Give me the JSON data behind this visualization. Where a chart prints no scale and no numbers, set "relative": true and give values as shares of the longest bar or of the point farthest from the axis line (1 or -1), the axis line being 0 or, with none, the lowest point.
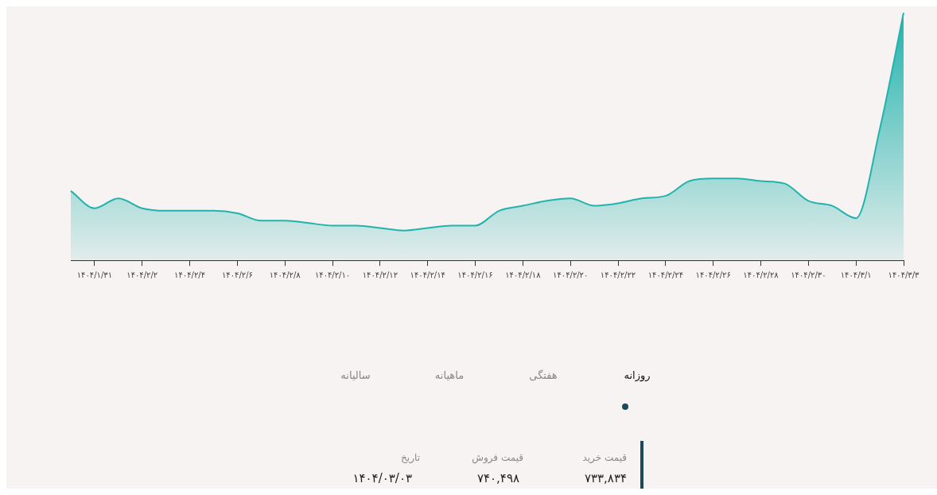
{
  "chart_data": {
    "type": "area",
    "relative": true,
    "color": "#22b3ad",
    "grid": false,
    "legend": false,
    "tick_labels": "x",
    "categories": [
      null,
      "۱۴۰۴/۱/۳۱",
      null,
      "۱۴۰۴/۲/۲",
      null,
      "۱۴۰۴/۲/۴",
      null,
      "۱۴۰۴/۲/۶",
      null,
      "۱۴۰۴/۲/۸",
      null,
      "۱۴۰۴/۲/۱۰",
      null,
      "۱۴۰۴/۲/۱۲",
      null,
      "۱۴۰۴/۲/۱۴",
      null,
      "۱۴۰۴/۲/۱۶",
      null,
      "۱۴۰۴/۲/۱۸",
      null,
      "۱۴۰۴/۲/۲۰",
      null,
      "۱۴۰۴/۲/۲۲",
      null,
      "۱۴۰۴/۲/۲۴",
      null,
      "۱۴۰۴/۲/۲۶",
      null,
      "۱۴۰۴/۲/۲۸",
      null,
      "۱۴۰۴/۲/۳۰",
      null,
      "۱۴۰۴/۳/۱",
      null,
      "۱۴۰۴/۳/۳"
    ],
    "values": [
      0.28,
      0.21,
      0.25,
      0.21,
      0.2,
      0.2,
      0.2,
      0.19,
      0.16,
      0.16,
      0.15,
      0.14,
      0.14,
      0.13,
      0.12,
      0.13,
      0.14,
      0.14,
      0.2,
      0.22,
      0.24,
      0.25,
      0.22,
      0.23,
      0.25,
      0.26,
      0.32,
      0.33,
      0.33,
      0.32,
      0.31,
      0.24,
      0.22,
      0.17,
      0.53,
      1
    ],
    "annotations": [
      "روزانه",
      "هفتگی",
      "ماهیانه",
      "سالیانه",
      "قیمت خرید",
      "قیمت فروش",
      "تاریخ",
      "۷۳۳,۸۳۴",
      "۷۴۰,۴۹۸",
      "۱۴۰۴/۰۳/۰۳"
    ]
  }
}
